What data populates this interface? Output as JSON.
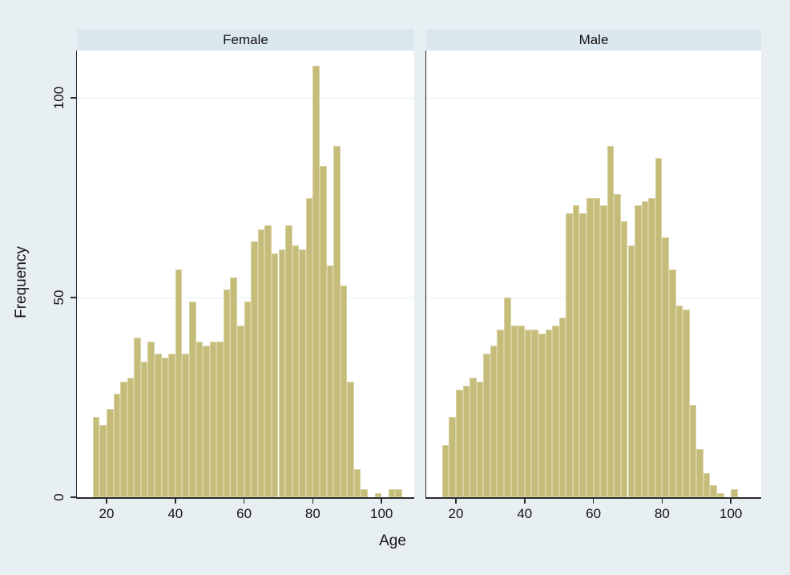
{
  "figure": {
    "background": "#e8eff2",
    "plot_background": "#ffffff",
    "strip_background": "#dae7ee",
    "bar_fill": "#c5bc79",
    "bar_edge": "#d8d2a3",
    "grid_color": "#e6f0f2",
    "axis_color": "#2b2b2b",
    "text_color": "#141414"
  },
  "labels": {
    "x": "Age",
    "y": "Frequency"
  },
  "panels": [
    {
      "title": "Female"
    },
    {
      "title": "Male"
    }
  ],
  "chart_data": {
    "type": "bar",
    "subtype": "faceted-histogram",
    "title": "",
    "xlabel": "Age",
    "ylabel": "Frequency",
    "bin_width": 2,
    "x_ticks": [
      20,
      40,
      60,
      80,
      100
    ],
    "y_ticks": [
      0,
      50,
      100
    ],
    "ylim": [
      0,
      112
    ],
    "xlim": [
      11,
      108
    ],
    "grid": "horizontal-only",
    "facets": [
      {
        "title": "Female",
        "first_bin_start": 16,
        "frequencies": [
          20,
          18,
          22,
          26,
          29,
          30,
          40,
          34,
          39,
          36,
          35,
          36,
          57,
          36,
          49,
          39,
          38,
          39,
          39,
          52,
          55,
          43,
          49,
          64,
          67,
          68,
          61,
          62,
          68,
          63,
          62,
          75,
          108,
          83,
          58,
          88,
          53,
          29,
          7,
          2,
          0,
          1,
          0,
          2,
          2
        ]
      },
      {
        "title": "Male",
        "first_bin_start": 16,
        "frequencies": [
          13,
          20,
          27,
          28,
          30,
          29,
          36,
          38,
          42,
          50,
          43,
          43,
          42,
          42,
          41,
          42,
          43,
          45,
          71,
          73,
          71,
          75,
          75,
          73,
          88,
          76,
          69,
          63,
          73,
          74,
          75,
          85,
          65,
          57,
          48,
          47,
          23,
          12,
          6,
          3,
          1,
          0,
          2
        ]
      }
    ]
  }
}
